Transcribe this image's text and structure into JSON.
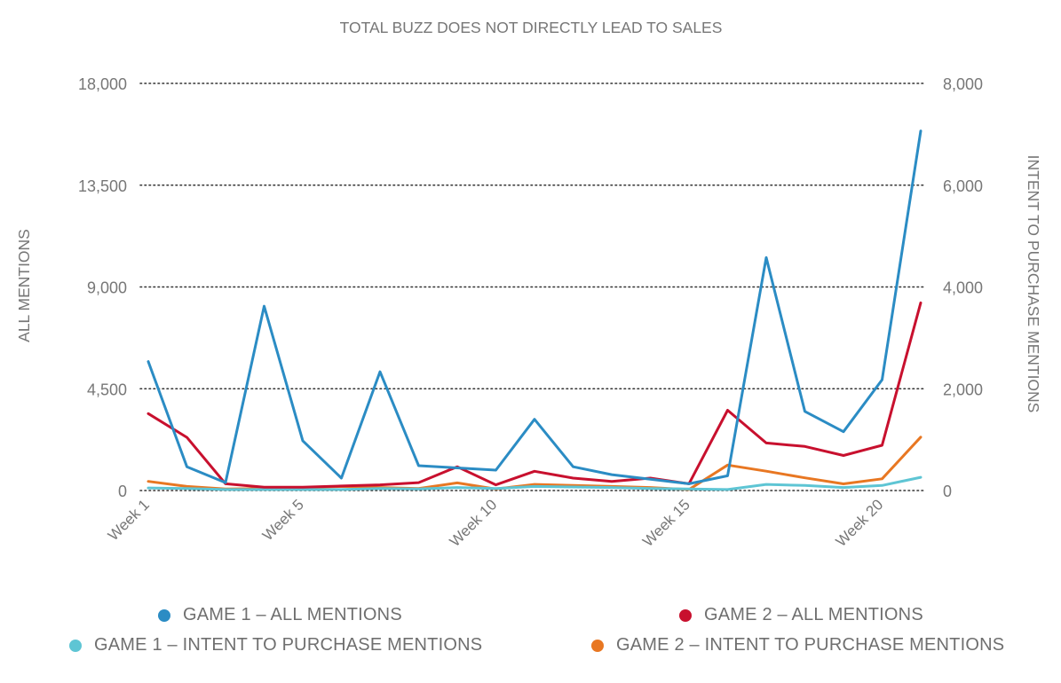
{
  "chart_data": {
    "type": "line",
    "title": "TOTAL BUZZ DOES NOT DIRECTLY LEAD TO SALES",
    "ylabel_left": "ALL MENTIONS",
    "ylabel_right": "INTENT TO PURCHASE MENTIONS",
    "ylim_left": [
      0,
      18000
    ],
    "ylim_right": [
      0,
      8000
    ],
    "yticks_left": [
      "0",
      "4,500",
      "9,000",
      "13,500",
      "18,000"
    ],
    "yticks_left_values": [
      0,
      4500,
      9000,
      13500,
      18000
    ],
    "yticks_right": [
      "0",
      "2,000",
      "4,000",
      "6,000",
      "8,000"
    ],
    "yticks_right_values": [
      0,
      2000,
      4000,
      6000,
      8000
    ],
    "xticks": [
      "Week 1",
      "Week 5",
      "Week 10",
      "Week 15",
      "Week 20"
    ],
    "xtick_weeks": [
      1,
      5,
      10,
      15,
      20
    ],
    "x": [
      1,
      2,
      3,
      4,
      5,
      6,
      7,
      8,
      9,
      10,
      11,
      12,
      13,
      14,
      15,
      16,
      17,
      18,
      19,
      20,
      21
    ],
    "grid": "horizontal dotted",
    "legend_position": "bottom",
    "series": [
      {
        "name": "GAME 1 – ALL MENTIONS",
        "axis": "left",
        "color": "#2b8cc4",
        "values": [
          5700,
          1050,
          350,
          8150,
          2200,
          550,
          5250,
          1100,
          1000,
          900,
          3150,
          1050,
          700,
          500,
          300,
          650,
          10300,
          3500,
          2600,
          4900,
          15900
        ]
      },
      {
        "name": "GAME 2 – ALL MENTIONS",
        "axis": "left",
        "color": "#c8102e",
        "values": [
          3400,
          2350,
          300,
          150,
          150,
          200,
          250,
          350,
          1050,
          250,
          850,
          550,
          400,
          550,
          300,
          3550,
          2100,
          1950,
          1550,
          2000,
          8300
        ]
      },
      {
        "name": "GAME 1 – INTENT TO PURCHASE MENTIONS",
        "axis": "right",
        "color": "#5ec5d4",
        "values": [
          50,
          40,
          20,
          20,
          20,
          20,
          40,
          30,
          60,
          40,
          80,
          70,
          60,
          40,
          30,
          20,
          120,
          100,
          60,
          100,
          260
        ]
      },
      {
        "name": "GAME 2 – INTENT TO PURCHASE MENTIONS",
        "axis": "right",
        "color": "#e87722",
        "values": [
          180,
          80,
          30,
          40,
          60,
          80,
          60,
          40,
          150,
          30,
          120,
          100,
          80,
          60,
          20,
          500,
          380,
          250,
          130,
          230,
          1050
        ]
      }
    ]
  }
}
